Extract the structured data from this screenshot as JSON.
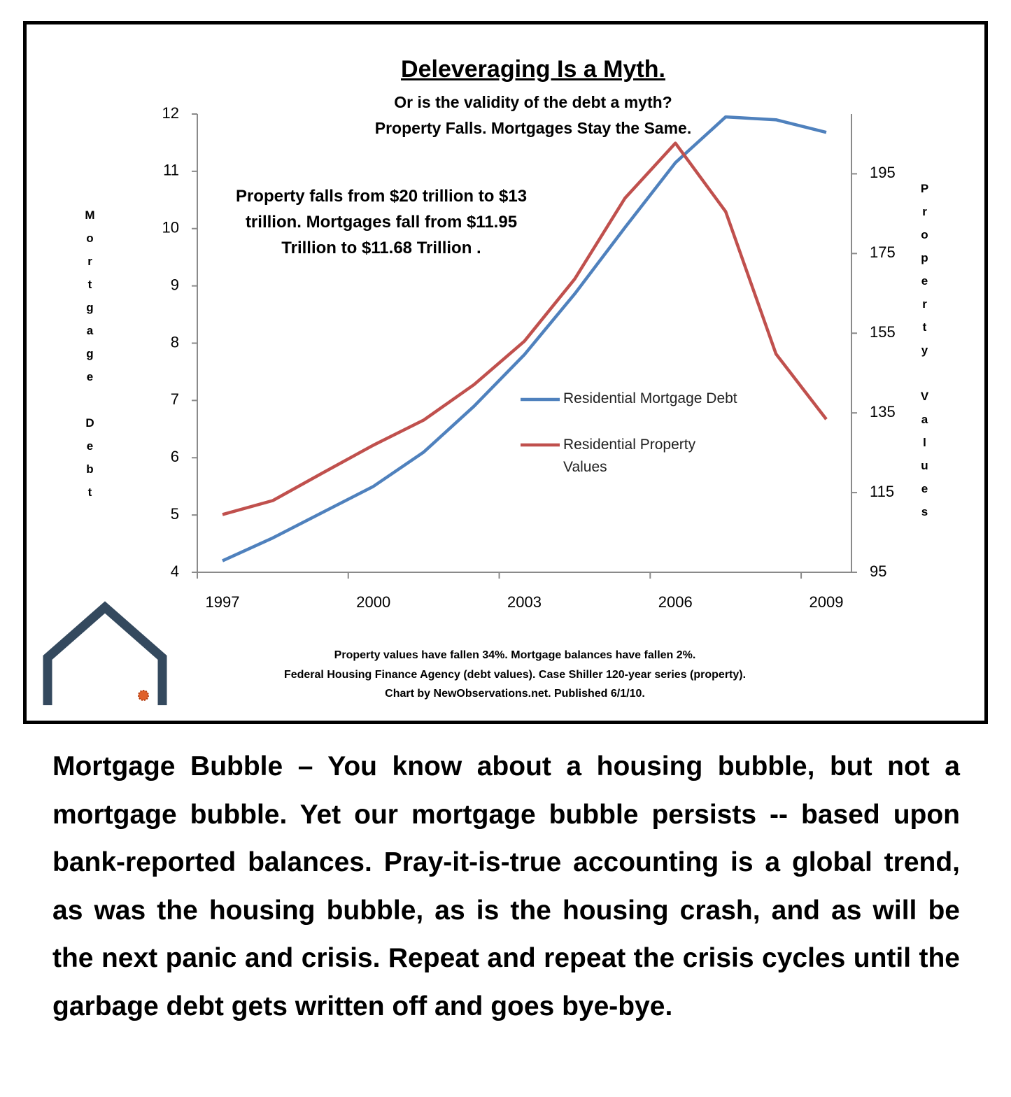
{
  "chart_data": {
    "type": "line",
    "title": "Deleveraging Is a Myth.",
    "subtitle": [
      "Or is the validity of the debt a myth?",
      "Property Falls. Mortgages Stay the Same."
    ],
    "annotation": "Property falls from $20 trillion to $13 trillion. Mortgages fall from $11.95 Trillion to $11.68 Trillion .",
    "ylabel": "Mortgage Debt",
    "y2label": "Property Values",
    "categories": [
      "1997",
      null,
      null,
      "2000",
      null,
      null,
      "2003",
      null,
      null,
      "2006",
      null,
      null,
      "2009"
    ],
    "series": [
      {
        "name": "Residential Mortgage Debt",
        "color": "#4f81bd",
        "axis": "y",
        "values": [
          4.2,
          4.6,
          5.05,
          5.5,
          6.1,
          6.9,
          7.8,
          8.86,
          10.02,
          11.15,
          11.95,
          11.9,
          11.68
        ]
      },
      {
        "name": "Residential Property Values",
        "color": "#c0504d",
        "axis": "y2",
        "values": [
          109.5,
          113,
          120,
          126.9,
          133.2,
          142.1,
          153,
          168.6,
          188.9,
          202.7,
          185.5,
          149.8,
          133.4
        ]
      }
    ],
    "ylim": [
      4,
      12
    ],
    "yticks": [
      4,
      5,
      6,
      7,
      8,
      9,
      10,
      11,
      12
    ],
    "y2lim": [
      95,
      210
    ],
    "y2ticks": [
      95,
      115,
      135,
      155,
      175,
      195
    ],
    "legend": "center",
    "footnotes": [
      "Property values have fallen 34%. Mortgage balances have fallen 2%.",
      "Federal Housing Finance Agency  (debt values). Case Shiller 120-year series (property).",
      "Chart by NewObservations.net. Published 6/1/10."
    ]
  },
  "body_text": "Mortgage Bubble – You know about a housing bubble, but not a mortgage bubble. Yet our mortgage bubble persists -- based upon bank-reported balances. Pray-it-is-true accounting is a global trend, as was the housing bubble, as is the housing crash, and as will be the next panic and crisis. Repeat and repeat the crisis cycles until the garbage debt gets written off and goes bye-bye."
}
